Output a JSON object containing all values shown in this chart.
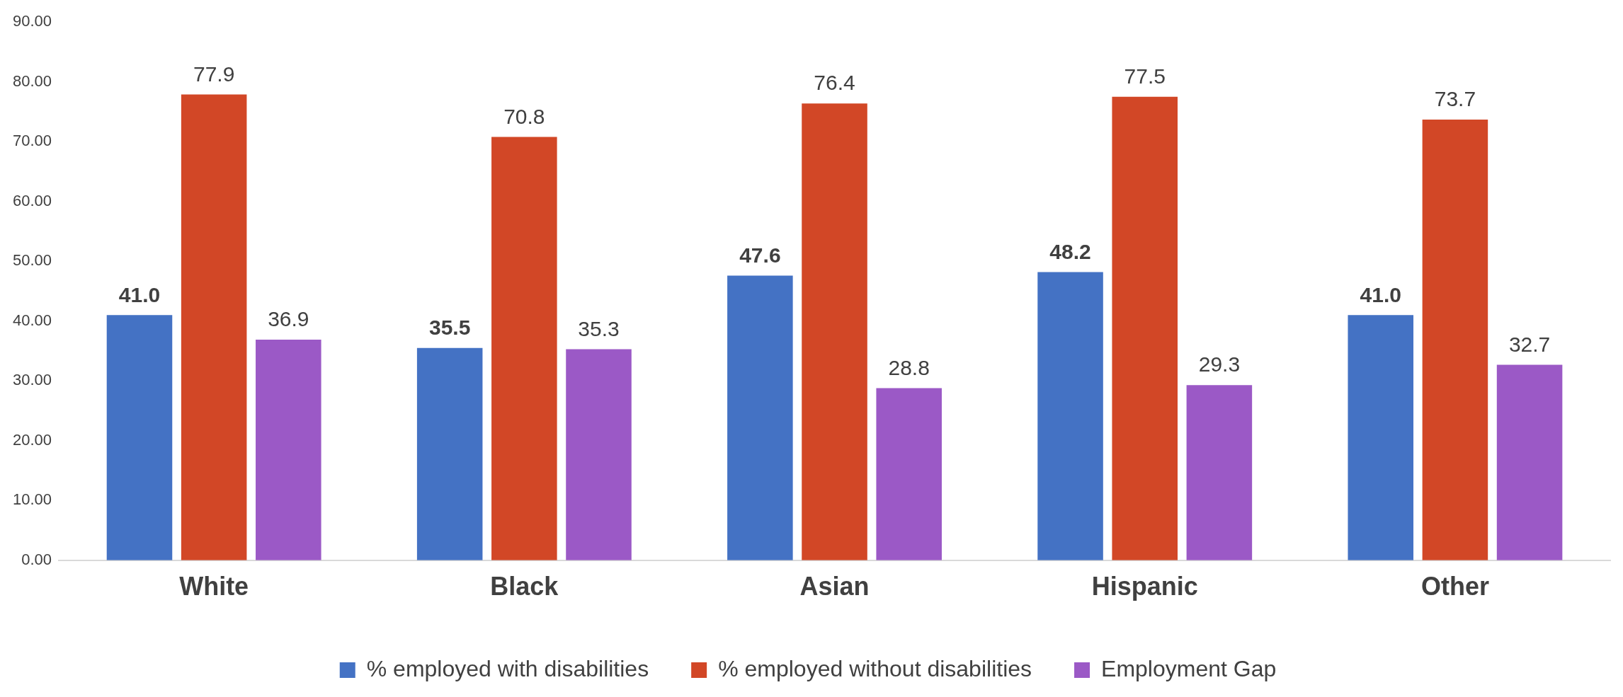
{
  "chart_data": {
    "type": "bar",
    "categories": [
      "White",
      "Black",
      "Asian",
      "Hispanic",
      "Other"
    ],
    "series": [
      {
        "name": "% employed with disabilities",
        "color": "#4472c4",
        "values": [
          41.0,
          35.5,
          47.6,
          48.2,
          41.0
        ],
        "value_labels": [
          "41.0",
          "35.5",
          "47.6",
          "48.2",
          "41.0"
        ]
      },
      {
        "name": "% employed without disabilities",
        "color": "#d24726",
        "values": [
          77.9,
          70.8,
          76.4,
          77.5,
          73.7
        ],
        "value_labels": [
          "77.9",
          "70.8",
          "76.4",
          "77.5",
          "73.7"
        ]
      },
      {
        "name": "Employment Gap",
        "color": "#9b59c6",
        "values": [
          36.9,
          35.3,
          28.8,
          29.3,
          32.7
        ],
        "value_labels": [
          "36.9",
          "35.3",
          "28.8",
          "29.3",
          "32.7"
        ]
      }
    ],
    "ylim": [
      0,
      90
    ],
    "yticks": [
      {
        "value": 0,
        "label": "0.00"
      },
      {
        "value": 10,
        "label": "10.00"
      },
      {
        "value": 20,
        "label": "20.00"
      },
      {
        "value": 30,
        "label": "30.00"
      },
      {
        "value": 40,
        "label": "40.00"
      },
      {
        "value": 50,
        "label": "50.00"
      },
      {
        "value": 60,
        "label": "60.00"
      },
      {
        "value": 70,
        "label": "70.00"
      },
      {
        "value": 80,
        "label": "80.00"
      },
      {
        "value": 90,
        "label": "90.00"
      }
    ],
    "grid": false,
    "legend": "bottom"
  }
}
